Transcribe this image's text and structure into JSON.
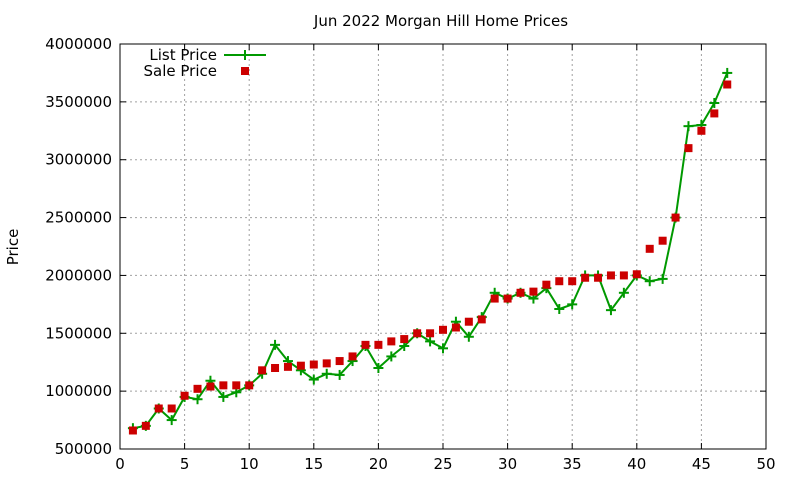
{
  "chart_data": {
    "type": "line",
    "title": "Jun 2022 Morgan Hill Home Prices",
    "xlabel": "",
    "ylabel": "Price",
    "xlim": [
      0,
      50
    ],
    "ylim": [
      500000,
      4000000
    ],
    "xticks": [
      0,
      5,
      10,
      15,
      20,
      25,
      30,
      35,
      40,
      45,
      50
    ],
    "yticks": [
      500000,
      1000000,
      1500000,
      2000000,
      2500000,
      3000000,
      3500000,
      4000000
    ],
    "grid": true,
    "legend_position": "top-left",
    "series": [
      {
        "name": "List Price",
        "style": "line+plus",
        "color": "#009900",
        "x": [
          1,
          2,
          3,
          4,
          5,
          6,
          7,
          8,
          9,
          10,
          11,
          12,
          13,
          14,
          15,
          16,
          17,
          18,
          19,
          20,
          21,
          22,
          23,
          24,
          25,
          26,
          27,
          28,
          29,
          30,
          31,
          32,
          33,
          34,
          35,
          36,
          37,
          38,
          39,
          40,
          41,
          42,
          43,
          44,
          45,
          46,
          47
        ],
        "y": [
          680000,
          700000,
          850000,
          750000,
          950000,
          930000,
          1090000,
          950000,
          990000,
          1050000,
          1150000,
          1400000,
          1260000,
          1180000,
          1100000,
          1150000,
          1140000,
          1260000,
          1390000,
          1200000,
          1300000,
          1390000,
          1500000,
          1430000,
          1370000,
          1600000,
          1470000,
          1640000,
          1850000,
          1800000,
          1850000,
          1800000,
          1890000,
          1710000,
          1750000,
          2000000,
          2000000,
          1700000,
          1850000,
          2000000,
          1950000,
          1970000,
          2500000,
          3290000,
          3300000,
          3490000,
          3750000
        ]
      },
      {
        "name": "Sale Price",
        "style": "square",
        "color": "#cc0000",
        "x": [
          1,
          2,
          3,
          4,
          5,
          6,
          7,
          8,
          9,
          10,
          11,
          12,
          13,
          14,
          15,
          16,
          17,
          18,
          19,
          20,
          21,
          22,
          23,
          24,
          25,
          26,
          27,
          28,
          29,
          30,
          31,
          32,
          33,
          34,
          35,
          36,
          37,
          38,
          39,
          40,
          41,
          42,
          43,
          44,
          45,
          46,
          47
        ],
        "y": [
          660000,
          700000,
          850000,
          850000,
          960000,
          1020000,
          1040000,
          1050000,
          1050000,
          1050000,
          1180000,
          1200000,
          1210000,
          1220000,
          1230000,
          1240000,
          1260000,
          1300000,
          1400000,
          1400000,
          1430000,
          1450000,
          1500000,
          1500000,
          1530000,
          1550000,
          1600000,
          1620000,
          1800000,
          1800000,
          1850000,
          1860000,
          1920000,
          1950000,
          1950000,
          1980000,
          1980000,
          2000000,
          2000000,
          2010000,
          2230000,
          2300000,
          2500000,
          3100000,
          3250000,
          3400000,
          3650000
        ]
      }
    ]
  }
}
